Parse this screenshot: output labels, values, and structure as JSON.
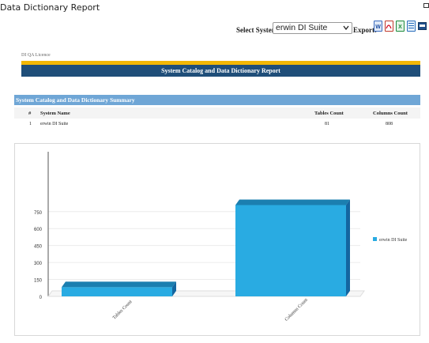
{
  "app": {
    "title": "Data Dictionary Report"
  },
  "controls": {
    "select_system_label": "Select System:",
    "system_selected": "erwin DI Suite",
    "export_label": "Export:",
    "export_icons": [
      "word-export-icon",
      "pdf-export-icon",
      "excel-export-icon",
      "csv-export-icon",
      "image-export-icon"
    ]
  },
  "licence": "DI QA Licence",
  "report_title": "System Catalog and Data Dictionary Report",
  "summary": {
    "title": "System Catalog and Data Dictionary Summary",
    "columns": [
      "#",
      "System Name",
      "Tables Count",
      "Columns Count"
    ],
    "rows": [
      {
        "num": "1",
        "system": "erwin DI Suite",
        "tables": "81",
        "columns": "808"
      }
    ]
  },
  "colors": {
    "accent_yellow": "#f2b705",
    "header_navy": "#1f4e79",
    "summary_blue": "#6fa6d6",
    "bar_blue": "#29abe2"
  },
  "chart_data": {
    "type": "bar",
    "categories": [
      "Tables Count",
      "Columns Count"
    ],
    "series": [
      {
        "name": "erwin DI Suite",
        "values": [
          81,
          808
        ]
      }
    ],
    "yticks": [
      "0",
      "150",
      "300",
      "450",
      "600",
      "750"
    ],
    "ylim": [
      0,
      900
    ],
    "legend": "right",
    "grid": true,
    "style": "3d"
  }
}
